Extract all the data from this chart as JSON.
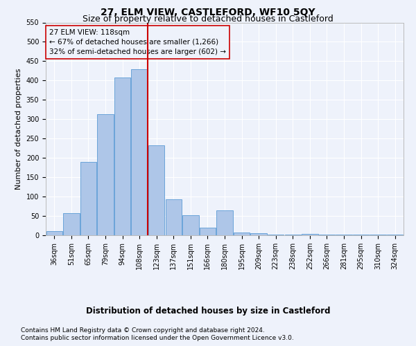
{
  "title": "27, ELM VIEW, CASTLEFORD, WF10 5QY",
  "subtitle": "Size of property relative to detached houses in Castleford",
  "xlabel": "Distribution of detached houses by size in Castleford",
  "ylabel": "Number of detached properties",
  "footnote1": "Contains HM Land Registry data © Crown copyright and database right 2024.",
  "footnote2": "Contains public sector information licensed under the Open Government Licence v3.0.",
  "annotation_line1": "27 ELM VIEW: 118sqm",
  "annotation_line2": "← 67% of detached houses are smaller (1,266)",
  "annotation_line3": "32% of semi-detached houses are larger (602) →",
  "bar_labels": [
    "36sqm",
    "51sqm",
    "65sqm",
    "79sqm",
    "94sqm",
    "108sqm",
    "123sqm",
    "137sqm",
    "151sqm",
    "166sqm",
    "180sqm",
    "195sqm",
    "209sqm",
    "223sqm",
    "238sqm",
    "252sqm",
    "266sqm",
    "281sqm",
    "295sqm",
    "310sqm",
    "324sqm"
  ],
  "bar_values": [
    10,
    58,
    190,
    313,
    407,
    430,
    232,
    93,
    52,
    20,
    65,
    8,
    6,
    2,
    2,
    3,
    1,
    1,
    1,
    1,
    1
  ],
  "bar_color": "#aec6e8",
  "bar_edge_color": "#5b9bd5",
  "vline_x_index": 5.5,
  "vline_color": "#cc0000",
  "annotation_box_edge_color": "#cc0000",
  "ylim": [
    0,
    550
  ],
  "yticks": [
    0,
    50,
    100,
    150,
    200,
    250,
    300,
    350,
    400,
    450,
    500,
    550
  ],
  "background_color": "#eef2fb",
  "grid_color": "#ffffff",
  "title_fontsize": 10,
  "subtitle_fontsize": 9,
  "ylabel_fontsize": 8,
  "xlabel_fontsize": 8.5,
  "tick_fontsize": 7,
  "annotation_fontsize": 7.5,
  "footnote_fontsize": 6.5
}
